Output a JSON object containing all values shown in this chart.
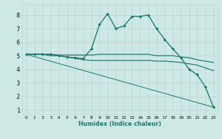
{
  "xlabel": "Humidex (Indice chaleur)",
  "xlim": [
    -0.5,
    23.5
  ],
  "ylim": [
    0.7,
    8.8
  ],
  "xticks": [
    0,
    1,
    2,
    3,
    4,
    5,
    6,
    7,
    8,
    9,
    10,
    11,
    12,
    13,
    14,
    15,
    16,
    17,
    18,
    19,
    20,
    21,
    22,
    23
  ],
  "yticks": [
    1,
    2,
    3,
    4,
    5,
    6,
    7,
    8
  ],
  "bg_color": "#cde8e5",
  "grid_color": "#b8d8d5",
  "line_color": "#1a7a6e",
  "series": [
    {
      "x": [
        0,
        1,
        2,
        3,
        4,
        5,
        6,
        7,
        8,
        9,
        10,
        11,
        12,
        13,
        14,
        15,
        16,
        17,
        18,
        19,
        20,
        21,
        22,
        23
      ],
      "y": [
        5.1,
        5.1,
        5.1,
        5.1,
        5.0,
        4.9,
        4.85,
        4.8,
        5.5,
        7.3,
        8.1,
        7.0,
        7.2,
        7.9,
        7.9,
        8.0,
        7.0,
        6.2,
        5.5,
        4.85,
        4.0,
        3.6,
        2.7,
        1.2
      ],
      "marker": "D",
      "markersize": 2.0,
      "linewidth": 1.0
    },
    {
      "x": [
        0,
        1,
        2,
        3,
        4,
        5,
        6,
        7,
        8,
        9,
        10,
        11,
        12,
        13,
        14,
        15,
        16,
        17,
        18,
        19,
        20,
        21,
        22,
        23
      ],
      "y": [
        5.1,
        5.1,
        5.1,
        5.1,
        5.05,
        5.05,
        5.05,
        5.05,
        5.05,
        5.1,
        5.1,
        5.1,
        5.1,
        5.1,
        5.1,
        5.1,
        5.0,
        5.0,
        5.0,
        4.9,
        4.85,
        4.7,
        4.6,
        4.5
      ],
      "marker": null,
      "linewidth": 0.9
    },
    {
      "x": [
        0,
        1,
        2,
        3,
        4,
        5,
        6,
        7,
        8,
        9,
        10,
        11,
        12,
        13,
        14,
        15,
        16,
        17,
        18,
        19,
        20,
        21,
        22,
        23
      ],
      "y": [
        5.1,
        5.1,
        5.1,
        5.0,
        5.0,
        4.9,
        4.8,
        4.7,
        4.65,
        4.65,
        4.65,
        4.65,
        4.65,
        4.65,
        4.65,
        4.65,
        4.6,
        4.6,
        4.55,
        4.5,
        4.4,
        4.3,
        4.1,
        3.9
      ],
      "marker": null,
      "linewidth": 0.9
    },
    {
      "x": [
        0,
        23
      ],
      "y": [
        5.1,
        1.2
      ],
      "marker": null,
      "linewidth": 0.75
    }
  ]
}
